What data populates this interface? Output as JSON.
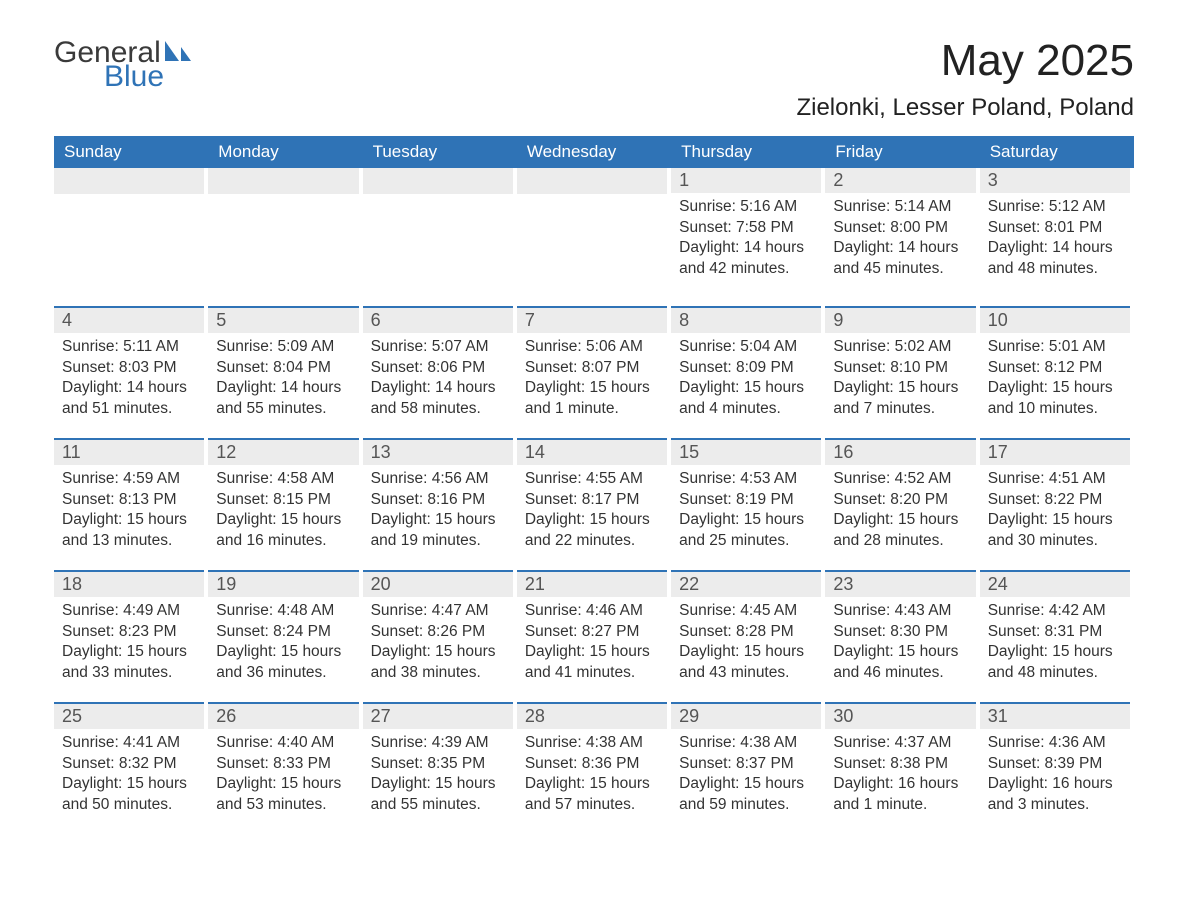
{
  "logo": {
    "word1": "General",
    "word2": "Blue"
  },
  "title": "May 2025",
  "location": "Zielonki, Lesser Poland, Poland",
  "colors": {
    "header_bg": "#2f73b6",
    "header_text": "#ffffff",
    "daynum_bg": "#ececec",
    "daynum_text": "#555555",
    "rule": "#2f73b6",
    "body_text": "#333333",
    "page_bg": "#ffffff",
    "logo_gray": "#3a3a3a",
    "logo_blue": "#2f73b6"
  },
  "typography": {
    "month_title_pt": 44,
    "location_pt": 24,
    "weekday_pt": 17,
    "daynum_pt": 18,
    "body_pt": 15.5,
    "logo_pt": 30
  },
  "weekdays": [
    "Sunday",
    "Monday",
    "Tuesday",
    "Wednesday",
    "Thursday",
    "Friday",
    "Saturday"
  ],
  "weeks": [
    [
      null,
      null,
      null,
      null,
      {
        "n": "1",
        "sunrise": "Sunrise: 5:16 AM",
        "sunset": "Sunset: 7:58 PM",
        "day1": "Daylight: 14 hours",
        "day2": "and 42 minutes."
      },
      {
        "n": "2",
        "sunrise": "Sunrise: 5:14 AM",
        "sunset": "Sunset: 8:00 PM",
        "day1": "Daylight: 14 hours",
        "day2": "and 45 minutes."
      },
      {
        "n": "3",
        "sunrise": "Sunrise: 5:12 AM",
        "sunset": "Sunset: 8:01 PM",
        "day1": "Daylight: 14 hours",
        "day2": "and 48 minutes."
      }
    ],
    [
      {
        "n": "4",
        "sunrise": "Sunrise: 5:11 AM",
        "sunset": "Sunset: 8:03 PM",
        "day1": "Daylight: 14 hours",
        "day2": "and 51 minutes."
      },
      {
        "n": "5",
        "sunrise": "Sunrise: 5:09 AM",
        "sunset": "Sunset: 8:04 PM",
        "day1": "Daylight: 14 hours",
        "day2": "and 55 minutes."
      },
      {
        "n": "6",
        "sunrise": "Sunrise: 5:07 AM",
        "sunset": "Sunset: 8:06 PM",
        "day1": "Daylight: 14 hours",
        "day2": "and 58 minutes."
      },
      {
        "n": "7",
        "sunrise": "Sunrise: 5:06 AM",
        "sunset": "Sunset: 8:07 PM",
        "day1": "Daylight: 15 hours",
        "day2": "and 1 minute."
      },
      {
        "n": "8",
        "sunrise": "Sunrise: 5:04 AM",
        "sunset": "Sunset: 8:09 PM",
        "day1": "Daylight: 15 hours",
        "day2": "and 4 minutes."
      },
      {
        "n": "9",
        "sunrise": "Sunrise: 5:02 AM",
        "sunset": "Sunset: 8:10 PM",
        "day1": "Daylight: 15 hours",
        "day2": "and 7 minutes."
      },
      {
        "n": "10",
        "sunrise": "Sunrise: 5:01 AM",
        "sunset": "Sunset: 8:12 PM",
        "day1": "Daylight: 15 hours",
        "day2": "and 10 minutes."
      }
    ],
    [
      {
        "n": "11",
        "sunrise": "Sunrise: 4:59 AM",
        "sunset": "Sunset: 8:13 PM",
        "day1": "Daylight: 15 hours",
        "day2": "and 13 minutes."
      },
      {
        "n": "12",
        "sunrise": "Sunrise: 4:58 AM",
        "sunset": "Sunset: 8:15 PM",
        "day1": "Daylight: 15 hours",
        "day2": "and 16 minutes."
      },
      {
        "n": "13",
        "sunrise": "Sunrise: 4:56 AM",
        "sunset": "Sunset: 8:16 PM",
        "day1": "Daylight: 15 hours",
        "day2": "and 19 minutes."
      },
      {
        "n": "14",
        "sunrise": "Sunrise: 4:55 AM",
        "sunset": "Sunset: 8:17 PM",
        "day1": "Daylight: 15 hours",
        "day2": "and 22 minutes."
      },
      {
        "n": "15",
        "sunrise": "Sunrise: 4:53 AM",
        "sunset": "Sunset: 8:19 PM",
        "day1": "Daylight: 15 hours",
        "day2": "and 25 minutes."
      },
      {
        "n": "16",
        "sunrise": "Sunrise: 4:52 AM",
        "sunset": "Sunset: 8:20 PM",
        "day1": "Daylight: 15 hours",
        "day2": "and 28 minutes."
      },
      {
        "n": "17",
        "sunrise": "Sunrise: 4:51 AM",
        "sunset": "Sunset: 8:22 PM",
        "day1": "Daylight: 15 hours",
        "day2": "and 30 minutes."
      }
    ],
    [
      {
        "n": "18",
        "sunrise": "Sunrise: 4:49 AM",
        "sunset": "Sunset: 8:23 PM",
        "day1": "Daylight: 15 hours",
        "day2": "and 33 minutes."
      },
      {
        "n": "19",
        "sunrise": "Sunrise: 4:48 AM",
        "sunset": "Sunset: 8:24 PM",
        "day1": "Daylight: 15 hours",
        "day2": "and 36 minutes."
      },
      {
        "n": "20",
        "sunrise": "Sunrise: 4:47 AM",
        "sunset": "Sunset: 8:26 PM",
        "day1": "Daylight: 15 hours",
        "day2": "and 38 minutes."
      },
      {
        "n": "21",
        "sunrise": "Sunrise: 4:46 AM",
        "sunset": "Sunset: 8:27 PM",
        "day1": "Daylight: 15 hours",
        "day2": "and 41 minutes."
      },
      {
        "n": "22",
        "sunrise": "Sunrise: 4:45 AM",
        "sunset": "Sunset: 8:28 PM",
        "day1": "Daylight: 15 hours",
        "day2": "and 43 minutes."
      },
      {
        "n": "23",
        "sunrise": "Sunrise: 4:43 AM",
        "sunset": "Sunset: 8:30 PM",
        "day1": "Daylight: 15 hours",
        "day2": "and 46 minutes."
      },
      {
        "n": "24",
        "sunrise": "Sunrise: 4:42 AM",
        "sunset": "Sunset: 8:31 PM",
        "day1": "Daylight: 15 hours",
        "day2": "and 48 minutes."
      }
    ],
    [
      {
        "n": "25",
        "sunrise": "Sunrise: 4:41 AM",
        "sunset": "Sunset: 8:32 PM",
        "day1": "Daylight: 15 hours",
        "day2": "and 50 minutes."
      },
      {
        "n": "26",
        "sunrise": "Sunrise: 4:40 AM",
        "sunset": "Sunset: 8:33 PM",
        "day1": "Daylight: 15 hours",
        "day2": "and 53 minutes."
      },
      {
        "n": "27",
        "sunrise": "Sunrise: 4:39 AM",
        "sunset": "Sunset: 8:35 PM",
        "day1": "Daylight: 15 hours",
        "day2": "and 55 minutes."
      },
      {
        "n": "28",
        "sunrise": "Sunrise: 4:38 AM",
        "sunset": "Sunset: 8:36 PM",
        "day1": "Daylight: 15 hours",
        "day2": "and 57 minutes."
      },
      {
        "n": "29",
        "sunrise": "Sunrise: 4:38 AM",
        "sunset": "Sunset: 8:37 PM",
        "day1": "Daylight: 15 hours",
        "day2": "and 59 minutes."
      },
      {
        "n": "30",
        "sunrise": "Sunrise: 4:37 AM",
        "sunset": "Sunset: 8:38 PM",
        "day1": "Daylight: 16 hours",
        "day2": "and 1 minute."
      },
      {
        "n": "31",
        "sunrise": "Sunrise: 4:36 AM",
        "sunset": "Sunset: 8:39 PM",
        "day1": "Daylight: 16 hours",
        "day2": "and 3 minutes."
      }
    ]
  ]
}
